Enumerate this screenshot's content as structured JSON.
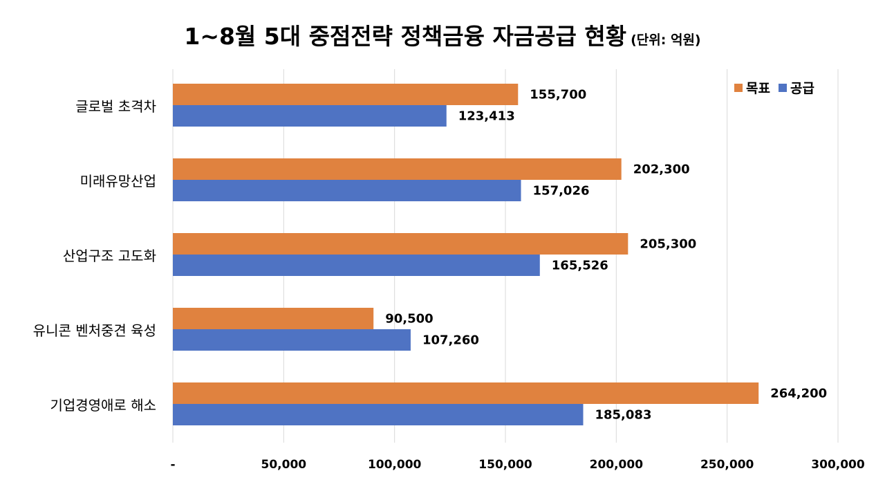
{
  "title": "1~8월 5대 중점전략 정책금융 자금공급 현황",
  "unit_label": "(단위: 억원)",
  "colors": {
    "target": "#E0823F",
    "supply": "#4F73C3",
    "grid": "#D9D9D9"
  },
  "chart_data": {
    "type": "bar",
    "orientation": "horizontal",
    "categories": [
      "글로벌 초격차",
      "미래유망산업",
      "산업구조 고도화",
      "유니콘 벤처중견 육성",
      "기업경영애로 해소"
    ],
    "series": [
      {
        "name": "목표",
        "values": [
          155700,
          202300,
          205300,
          90500,
          264200
        ]
      },
      {
        "name": "공급",
        "values": [
          123413,
          157026,
          165526,
          107260,
          185083
        ]
      }
    ],
    "data_labels": [
      [
        "155,700",
        "202,300",
        "205,300",
        "90,500",
        "264,200"
      ],
      [
        "123,413",
        "157,026",
        "165,526",
        "107,260",
        "185,083"
      ]
    ],
    "xlim": [
      0,
      300000
    ],
    "ticks": [
      0,
      50000,
      100000,
      150000,
      200000,
      250000,
      300000
    ],
    "tick_labels": [
      "-",
      "50,000",
      "100,000",
      "150,000",
      "200,000",
      "250,000",
      "300,000"
    ],
    "grid": true,
    "legend_position": "top-right"
  }
}
